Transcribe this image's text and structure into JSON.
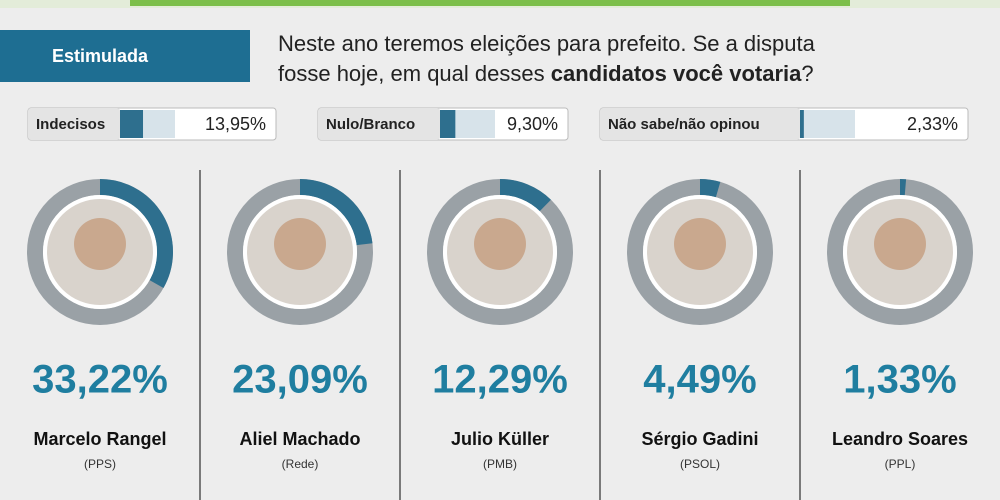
{
  "header": {
    "tag": "Estimulada",
    "question_line1": "Neste ano teremos eleições para prefeito. Se a disputa",
    "question_line2_start": "fosse hoje, em qual desses ",
    "question_line2_bold": "candidatos você votaria",
    "question_line2_end": "?"
  },
  "summary": {
    "items": [
      {
        "label": "Indecisos",
        "value": 13.95,
        "value_label": "13,95%"
      },
      {
        "label": "Nulo/Branco",
        "value": 9.3,
        "value_label": "9,30%"
      },
      {
        "label": "Não sabe/não opinou",
        "value": 2.33,
        "value_label": "2,33%"
      }
    ]
  },
  "chart_data": {
    "type": "gauge",
    "vlim": [
      0,
      100
    ],
    "color": "#2e6f8e",
    "categories": [
      "Marcelo Rangel",
      "Aliel Machado",
      "Julio Küller",
      "Sérgio Gadini",
      "Leandro Soares"
    ],
    "parties": [
      "(PPS)",
      "(Rede)",
      "(PMB)",
      "(PSOL)",
      "(PPL)"
    ],
    "values": [
      33.22,
      23.09,
      12.29,
      4.49,
      1.33
    ],
    "value_labels": [
      "33,22%",
      "23,09%",
      "12,29%",
      "4,49%",
      "1,33%"
    ]
  }
}
